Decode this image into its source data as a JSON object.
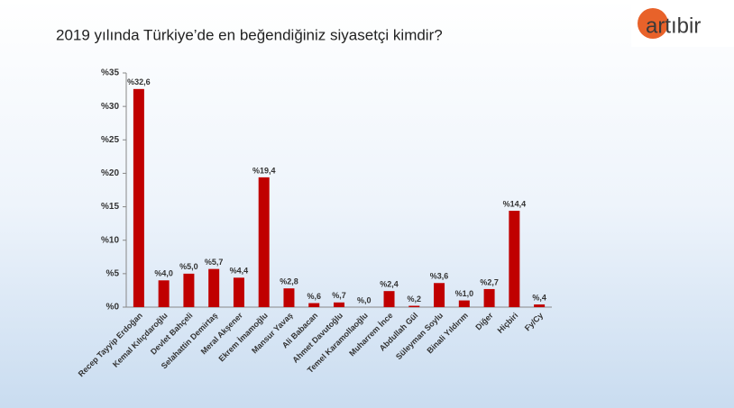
{
  "chart_data": {
    "type": "bar",
    "title": "2019 yılında Türkiye’de en beğendiğiniz siyasetçi kimdir?",
    "logo": "artıbir",
    "categories": [
      "Recep Tayyip Erdoğan",
      "Kemal Kılıçdaroğlu",
      "Devlet Bahçeli",
      "Selahattin Demirtaş",
      "Meral Akşener",
      "Ekrem İmamoğlu",
      "Mansur Yavaş",
      "Ali Babacan",
      "Ahmet Davutoğlu",
      "Temel Karamollaoğlu",
      "Muharrem İnce",
      "Abdullah Gül",
      "Süleyman Soylu",
      "Binali Yıldırım",
      "Diğer",
      "Hiçbiri",
      "Fy/Cy"
    ],
    "values": [
      32.6,
      4.0,
      5.0,
      5.7,
      4.4,
      19.4,
      2.8,
      0.6,
      0.7,
      0.0,
      2.4,
      0.2,
      3.6,
      1.0,
      2.7,
      14.4,
      0.4
    ],
    "value_labels": [
      "%32,6",
      "%4,0",
      "%5,0",
      "%5,7",
      "%4,4",
      "%19,4",
      "%2,8",
      "%,6",
      "%,7",
      "%,0",
      "%2,4",
      "%,2",
      "%3,6",
      "%1,0",
      "%2,7",
      "%14,4",
      "%,4"
    ],
    "color": "#c00000",
    "ylim": [
      0,
      35
    ],
    "yticks": [
      {
        "value": 0,
        "label": "%0"
      },
      {
        "value": 5,
        "label": "%5"
      },
      {
        "value": 10,
        "label": "%10"
      },
      {
        "value": 15,
        "label": "%15"
      },
      {
        "value": 20,
        "label": "%20"
      },
      {
        "value": 25,
        "label": "%25"
      },
      {
        "value": 30,
        "label": "%30"
      },
      {
        "value": 35,
        "label": "%35"
      }
    ]
  }
}
